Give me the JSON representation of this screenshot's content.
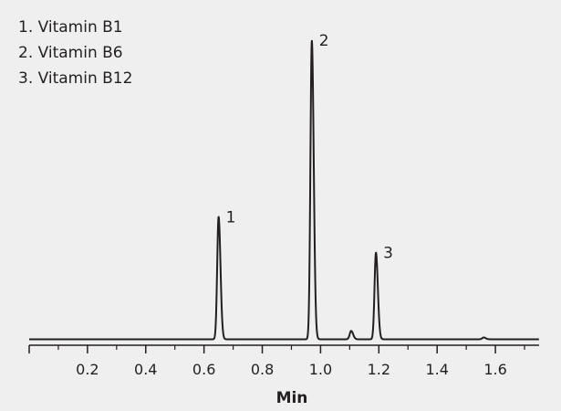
{
  "chart_data": {
    "type": "line",
    "title": "",
    "xlabel": "Min",
    "ylabel": "",
    "xlim": [
      0,
      1.75
    ],
    "ylim": [
      -0.02,
      1.08
    ],
    "grid": false,
    "legend_position": "top-left",
    "colors": {
      "background": "#efefef",
      "line": "#231f20",
      "text": "#231f20"
    },
    "legend": [
      "1. Vitamin B1",
      "2. Vitamin B6",
      "3. Vitamin B12"
    ],
    "xticks": [
      {
        "value": 0.2,
        "label": "0.2"
      },
      {
        "value": 0.4,
        "label": "0.4"
      },
      {
        "value": 0.6,
        "label": "0.6"
      },
      {
        "value": 0.8,
        "label": "0.8"
      },
      {
        "value": 1.0,
        "label": "1.0"
      },
      {
        "value": 1.2,
        "label": "1.2"
      },
      {
        "value": 1.4,
        "label": "1.4"
      },
      {
        "value": 1.6,
        "label": "1.6"
      }
    ],
    "minor_ticks": [
      0.1,
      0.3,
      0.5,
      0.7,
      0.9,
      1.1,
      1.3,
      1.5,
      1.7
    ],
    "peaks": [
      {
        "label": "1",
        "compound": "Vitamin B1",
        "rt": 0.65,
        "height": 0.41
      },
      {
        "label": "2",
        "compound": "Vitamin B6",
        "rt": 0.97,
        "height": 1.0
      },
      {
        "label": "3",
        "compound": "Vitamin B12",
        "rt": 1.19,
        "height": 0.29
      }
    ],
    "minor_peaks": [
      {
        "rt": 1.105,
        "height": 0.028
      },
      {
        "rt": 1.56,
        "height": 0.006
      }
    ],
    "baseline": 0
  }
}
